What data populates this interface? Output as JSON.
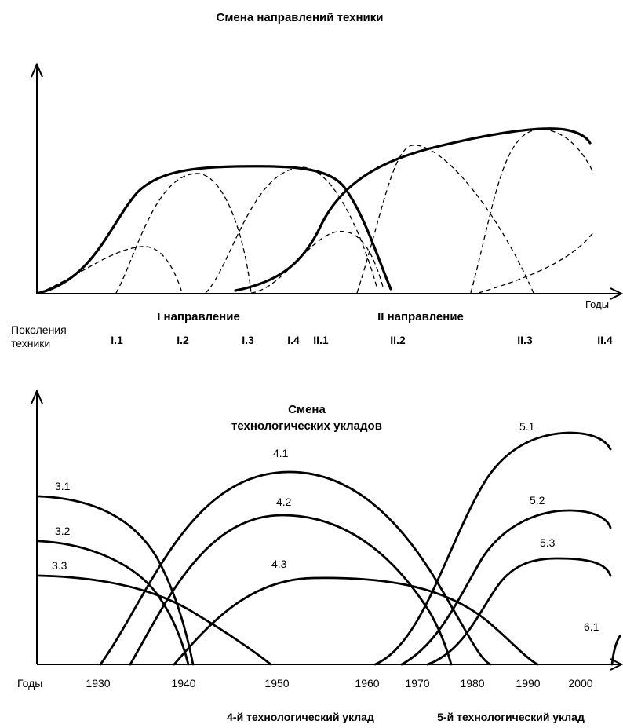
{
  "top": {
    "title": "Смена направлений техники",
    "x_axis_label": "Годы",
    "direction_1_label": "I направление",
    "direction_2_label": "II направление",
    "generations_label_line1": "Поколения",
    "generations_label_line2": "техники",
    "generations": [
      "I.1",
      "I.2",
      "I.3",
      "I.4",
      "II.1",
      "II.2",
      "II.3",
      "II.4"
    ]
  },
  "bottom": {
    "title_line1": "Смена",
    "title_line2": "технологических укладов",
    "x_axis_label": "Годы",
    "years": [
      "1930",
      "1940",
      "1950",
      "1960",
      "1970",
      "1980",
      "1990",
      "2000"
    ],
    "curve_labels": [
      "3.1",
      "3.2",
      "3.3",
      "4.1",
      "4.2",
      "4.3",
      "5.1",
      "5.2",
      "5.3",
      "6.1"
    ],
    "uklad_4_label": "4-й технологический уклад",
    "uklad_5_label": "5-й технологический уклад"
  }
}
